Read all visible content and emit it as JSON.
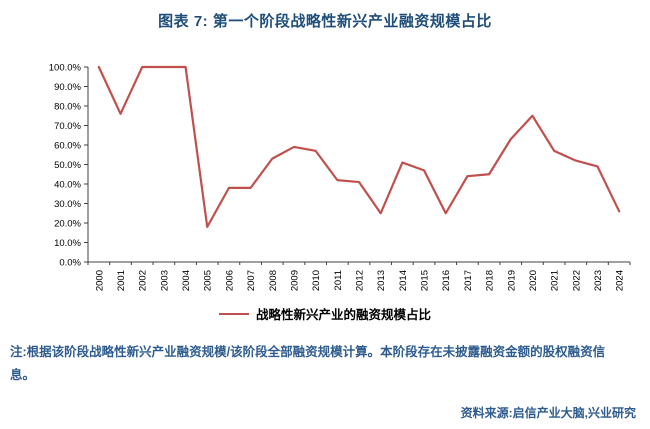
{
  "title": "图表 7: 第一个阶段战略性新兴产业融资规模占比",
  "chart_data": {
    "type": "line",
    "x": [
      "2000",
      "2001",
      "2002",
      "2003",
      "2004",
      "2005",
      "2006",
      "2007",
      "2008",
      "2009",
      "2010",
      "2011",
      "2012",
      "2013",
      "2014",
      "2015",
      "2016",
      "2017",
      "2018",
      "2019",
      "2020",
      "2021",
      "2022",
      "2023",
      "2024"
    ],
    "series": [
      {
        "name": "战略性新兴产业的融资规模占比",
        "color": "#C0504D",
        "values": [
          100,
          76,
          100,
          100,
          100,
          18,
          38,
          38,
          53,
          59,
          57,
          42,
          41,
          25,
          51,
          47,
          25,
          44,
          45,
          63,
          75,
          57,
          52,
          49,
          26
        ]
      }
    ],
    "ylim": [
      0,
      100
    ],
    "ytick_step": 10,
    "ytick_suffix": "%",
    "grid": false,
    "legend_position": "bottom"
  },
  "note": "注:根据该阶段战略性新兴产业融资规模/该阶段全部融资规模计算。本阶段存在未披露融资金额的股权融资信息。",
  "source": "资料来源:启信产业大脑,兴业研究",
  "colors": {
    "title": "#1F4E79",
    "note": "#2E5C8F",
    "line": "#C0504D",
    "axis": "#404040"
  }
}
